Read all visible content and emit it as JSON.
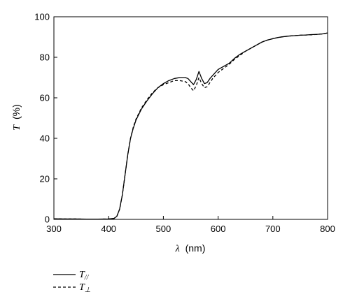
{
  "chart_data": {
    "type": "line",
    "xlabel_symbol": "λ",
    "xlabel_unit": "(nm)",
    "ylabel_symbol": "T",
    "ylabel_unit": "(%)",
    "xlim": [
      300,
      800
    ],
    "ylim": [
      0,
      100
    ],
    "xticks": [
      300,
      400,
      500,
      600,
      700,
      800
    ],
    "yticks": [
      0,
      20,
      40,
      60,
      80,
      100
    ],
    "grid": false,
    "legend_position": "below plot, left",
    "series": [
      {
        "name": "T//",
        "name_symbol": "T",
        "name_subscript": "//",
        "line_style": "solid",
        "color": "#000000",
        "x": [
          300,
          320,
          340,
          360,
          380,
          400,
          410,
          415,
          420,
          425,
          430,
          435,
          440,
          445,
          450,
          460,
          470,
          480,
          490,
          500,
          510,
          520,
          530,
          540,
          545,
          550,
          555,
          560,
          565,
          570,
          575,
          580,
          585,
          590,
          600,
          610,
          620,
          630,
          640,
          650,
          660,
          670,
          680,
          690,
          700,
          710,
          720,
          730,
          740,
          750,
          760,
          770,
          780,
          790,
          800
        ],
        "y": [
          0.3,
          0.2,
          0.2,
          0.1,
          0.1,
          0.2,
          0.5,
          1.5,
          5,
          12,
          22,
          32,
          40,
          45,
          49,
          54.5,
          58.5,
          62,
          65,
          67,
          68.5,
          69.5,
          70,
          70,
          69.5,
          68,
          66.5,
          69,
          73,
          69.5,
          67,
          67.5,
          69.5,
          71,
          74,
          75.5,
          77,
          79.5,
          81.5,
          83,
          84.5,
          86,
          87.5,
          88.5,
          89.2,
          89.8,
          90.2,
          90.5,
          90.7,
          90.9,
          91,
          91.2,
          91.3,
          91.5,
          92
        ]
      },
      {
        "name": "T⊥",
        "name_symbol": "T",
        "name_subscript": "⊥",
        "line_style": "dashed",
        "color": "#000000",
        "x": [
          300,
          320,
          340,
          360,
          380,
          400,
          410,
          415,
          420,
          425,
          430,
          435,
          440,
          445,
          450,
          460,
          470,
          480,
          490,
          500,
          510,
          520,
          530,
          540,
          545,
          550,
          555,
          560,
          565,
          570,
          575,
          580,
          585,
          590,
          600,
          610,
          620,
          630,
          640,
          650,
          660,
          670,
          680,
          690,
          700,
          710,
          720,
          730,
          740,
          750,
          760,
          770,
          780,
          790,
          800
        ],
        "y": [
          0.3,
          0.2,
          0.2,
          0.1,
          0.1,
          0.2,
          0.5,
          1.5,
          5,
          12,
          22,
          32,
          40,
          45.5,
          49.5,
          55,
          59,
          62.5,
          65,
          66.5,
          67.5,
          68.5,
          68.5,
          68,
          67,
          65,
          63.5,
          66,
          70,
          67,
          65,
          65.5,
          67.5,
          69.5,
          72.5,
          74.5,
          76.5,
          79,
          81,
          83,
          84.5,
          86,
          87.5,
          88.5,
          89.2,
          89.8,
          90.2,
          90.5,
          90.7,
          90.9,
          91,
          91.1,
          91.3,
          91.5,
          92
        ]
      }
    ]
  }
}
